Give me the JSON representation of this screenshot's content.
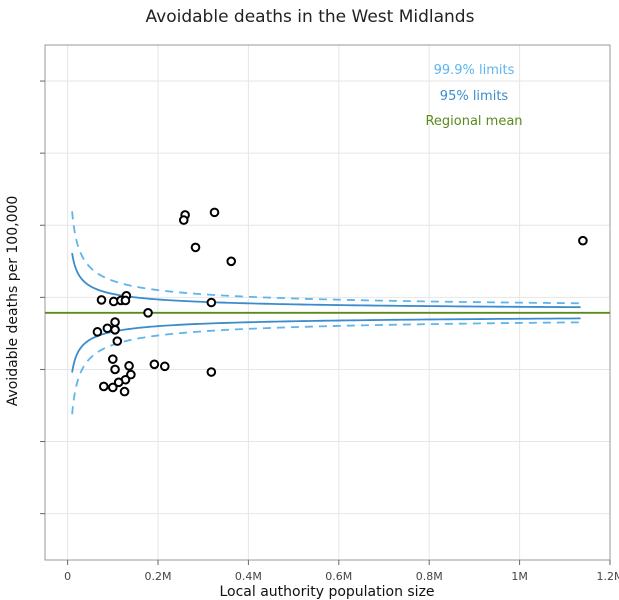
{
  "colors": {
    "limit_999": "#5db5ee",
    "limit_95": "#3b8ccc",
    "regional_mean": "#5a8a1c",
    "points": "#000000",
    "grid": "#e6e6e6",
    "frame": "#999999"
  },
  "chart_data": {
    "type": "scatter",
    "title": "Avoidable deaths in the West Midlands",
    "xlabel": "Local authority population size",
    "ylabel": "Avoidable deaths per 100,000",
    "xlim": [
      -50000,
      1200000
    ],
    "ylim": [
      0,
      1
    ],
    "y_scale_unlabeled": true,
    "x_ticks": [
      {
        "value": 0,
        "label": "0"
      },
      {
        "value": 200000,
        "label": "0.2M"
      },
      {
        "value": 400000,
        "label": "0.4M"
      },
      {
        "value": 600000,
        "label": "0.6M"
      },
      {
        "value": 800000,
        "label": "0.8M"
      },
      {
        "value": 1000000,
        "label": "1M"
      },
      {
        "value": 1200000,
        "label": "1.2M"
      }
    ],
    "y_ticks": [
      0.09,
      0.23,
      0.37,
      0.51,
      0.65,
      0.79,
      0.93
    ],
    "grid": true,
    "legend_position": "top-right",
    "legend": [
      {
        "label": "99.9% limits",
        "color_key": "limit_999"
      },
      {
        "label": "95% limits",
        "color_key": "limit_95"
      },
      {
        "label": "Regional mean",
        "color_key": "regional_mean"
      }
    ],
    "regional_mean": 0.48,
    "funnel": {
      "x_min": 10000,
      "x_max": 1135000,
      "k95": 11.6,
      "k999": 19.7
    },
    "points": [
      {
        "x": 1140000,
        "y": 0.62
      },
      {
        "x": 325000,
        "y": 0.675
      },
      {
        "x": 260000,
        "y": 0.67
      },
      {
        "x": 257000,
        "y": 0.66
      },
      {
        "x": 283000,
        "y": 0.607
      },
      {
        "x": 362000,
        "y": 0.58
      },
      {
        "x": 75000,
        "y": 0.505
      },
      {
        "x": 102000,
        "y": 0.502
      },
      {
        "x": 118000,
        "y": 0.504
      },
      {
        "x": 130000,
        "y": 0.513
      },
      {
        "x": 128000,
        "y": 0.504
      },
      {
        "x": 318000,
        "y": 0.5
      },
      {
        "x": 178000,
        "y": 0.48
      },
      {
        "x": 105000,
        "y": 0.462
      },
      {
        "x": 88000,
        "y": 0.45
      },
      {
        "x": 105000,
        "y": 0.447
      },
      {
        "x": 66000,
        "y": 0.443
      },
      {
        "x": 110000,
        "y": 0.425
      },
      {
        "x": 100000,
        "y": 0.39
      },
      {
        "x": 105000,
        "y": 0.37
      },
      {
        "x": 192000,
        "y": 0.38
      },
      {
        "x": 215000,
        "y": 0.376
      },
      {
        "x": 136000,
        "y": 0.377
      },
      {
        "x": 140000,
        "y": 0.36
      },
      {
        "x": 128000,
        "y": 0.35
      },
      {
        "x": 318000,
        "y": 0.365
      },
      {
        "x": 113000,
        "y": 0.345
      },
      {
        "x": 80000,
        "y": 0.337
      },
      {
        "x": 100000,
        "y": 0.335
      },
      {
        "x": 126000,
        "y": 0.327
      }
    ]
  }
}
